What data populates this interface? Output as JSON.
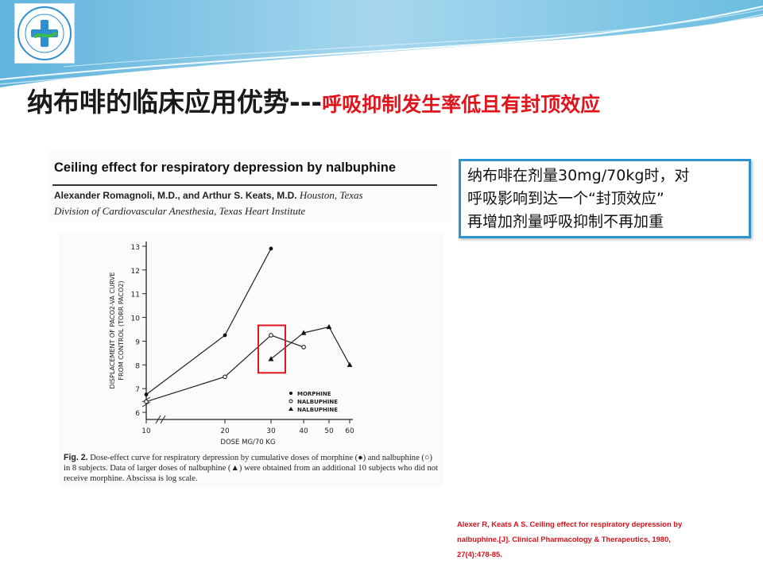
{
  "slide": {
    "title_main": "纳布啡的临床应用优势---",
    "title_sub": "呼吸抑制发生率低且有封顶效应"
  },
  "paper": {
    "title": "Ceiling effect for respiratory depression by nalbuphine",
    "authors": "Alexander Romagnoli, M.D., and Arthur S. Keats, M.D.",
    "location": "Houston, Texas",
    "affiliation": "Division of Cardiovascular Anesthesia, Texas Heart Institute"
  },
  "callout": {
    "line1": "纳布啡在剂量30mg/70kg时，对",
    "line2": "呼吸影响到达一个“封顶效应”",
    "line3": "再增加剂量呼吸抑制不再加重",
    "border_color": "#2b95cf"
  },
  "figure": {
    "caption_label": "Fig. 2.",
    "caption_text": "Dose-effect curve for respiratory depression by cumulative doses of morphine (●) and nalbuphine (○) in 8 subjects. Data of larger doses of nalbuphine (▲) were obtained from an additional 10 subjects who did not receive morphine. Abscissa is log scale."
  },
  "citation": {
    "line1": "Alexer R, Keats A S. Ceiling effect for respiratory depression by",
    "line2": "nalbuphine.[J]. Clinical Pharmacology & Therapeutics, 1980,",
    "line3": "27(4):478-85."
  },
  "colors": {
    "title_accent": "#e0141c",
    "highlight_box": "#e0141c",
    "citation": "#d8121a"
  },
  "chart_data": {
    "type": "line",
    "xlabel": "DOSE  MG/70 KG",
    "ylabel_line1": "DISPLACEMENT OF PACO2-VA CURVE",
    "ylabel_line2": "FROM CONTROL (TORR PACO2)",
    "x_scale": "log",
    "x_ticks": [
      10,
      20,
      30,
      40,
      50,
      60
    ],
    "y_ticks": [
      6,
      7,
      8,
      9,
      10,
      11,
      12,
      13
    ],
    "xlim": [
      10,
      60
    ],
    "ylim": [
      5.7,
      13.2
    ],
    "grid": false,
    "legend_placement": "bottom-right",
    "series": [
      {
        "name": "MORPHINE",
        "marker": "filled-circle",
        "points": [
          [
            10,
            6.75
          ],
          [
            20,
            9.25
          ],
          [
            30,
            12.9
          ]
        ]
      },
      {
        "name": "NALBUPHINE",
        "marker": "open-circle",
        "points": [
          [
            10,
            6.45
          ],
          [
            20,
            7.5
          ],
          [
            30,
            9.25
          ],
          [
            40,
            8.75
          ]
        ]
      },
      {
        "name": "NALBUPHINE",
        "marker": "filled-triangle",
        "points": [
          [
            30,
            8.25
          ],
          [
            40,
            9.35
          ],
          [
            50,
            9.6
          ],
          [
            60,
            8.0
          ]
        ]
      }
    ],
    "highlight": {
      "x": 30,
      "y_range": [
        8.0,
        9.6
      ]
    }
  }
}
